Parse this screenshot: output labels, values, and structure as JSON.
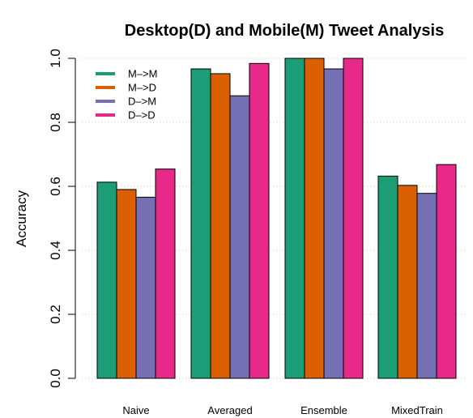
{
  "chart_data": {
    "type": "bar",
    "title": "Desktop(D) and Mobile(M) Tweet Analysis",
    "xlabel": "",
    "ylabel": "Accuracy",
    "categories": [
      "Naive",
      "Averaged",
      "Ensemble",
      "MixedTrain"
    ],
    "series": [
      {
        "name": "M–>M",
        "color": "#1b9e77",
        "values": [
          0.613,
          0.967,
          1.0,
          0.632
        ]
      },
      {
        "name": "M–>D",
        "color": "#d95f02",
        "values": [
          0.59,
          0.952,
          1.0,
          0.603
        ]
      },
      {
        "name": "D–>M",
        "color": "#7570b3",
        "values": [
          0.566,
          0.883,
          0.967,
          0.578
        ]
      },
      {
        "name": "D–>D",
        "color": "#e7298a",
        "values": [
          0.654,
          0.984,
          1.0,
          0.668
        ]
      }
    ],
    "ylim": [
      0,
      1
    ],
    "yticks": [
      "0.0",
      "0.2",
      "0.4",
      "0.6",
      "0.8",
      "1.0"
    ],
    "grid": true,
    "legend_position": "top-left"
  }
}
